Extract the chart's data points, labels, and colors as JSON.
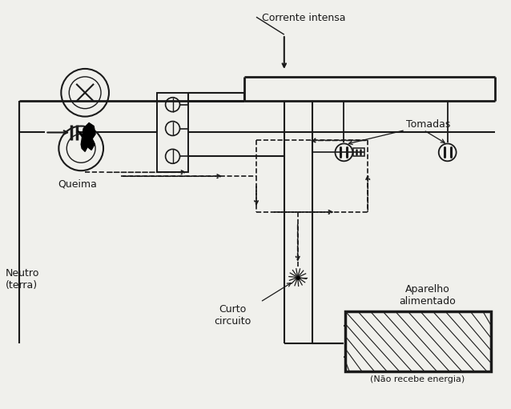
{
  "bg_color": "#f0f0ec",
  "line_color": "#1a1a1a",
  "labels": {
    "corrente_intensa": "Corrente intensa",
    "tomadas": "Tomadas",
    "queima": "Queima",
    "neutro": "Neutro\n(terra)",
    "curto_circuito": "Curto\ncircuito",
    "aparelho": "Aparelho\nalimentado",
    "nao_recebe": "(Não recebe energia)"
  },
  "figsize": [
    6.38,
    5.11
  ],
  "dpi": 100
}
